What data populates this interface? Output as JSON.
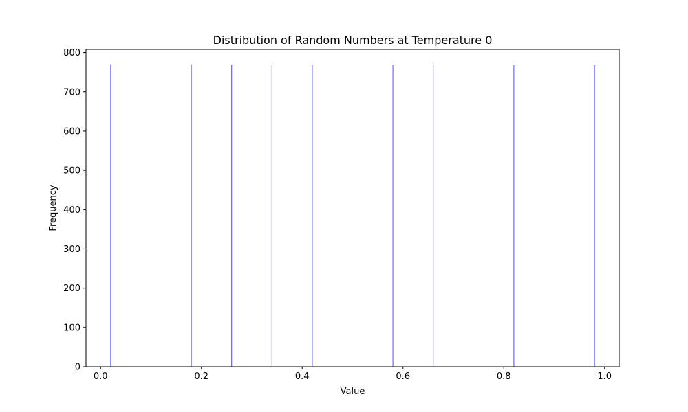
{
  "chart_data": {
    "type": "bar",
    "title": "Distribution of Random Numbers at Temperature 0",
    "xlabel": "Value",
    "ylabel": "Frequency",
    "xlim": [
      -0.029,
      1.029
    ],
    "ylim": [
      0,
      808
    ],
    "x_ticks": [
      0.0,
      0.2,
      0.4,
      0.6,
      0.8,
      1.0
    ],
    "x_tick_labels": [
      "0.0",
      "0.2",
      "0.4",
      "0.6",
      "0.8",
      "1.0"
    ],
    "y_ticks": [
      0,
      100,
      200,
      300,
      400,
      500,
      600,
      700,
      800
    ],
    "y_tick_labels": [
      "0",
      "100",
      "200",
      "300",
      "400",
      "500",
      "600",
      "700",
      "800"
    ],
    "bar_color": "#0000ff",
    "bar_opacity": 0.7,
    "grid": false,
    "bars": [
      {
        "x": 0.02,
        "value": 770
      },
      {
        "x": 0.18,
        "value": 770
      },
      {
        "x": 0.26,
        "value": 769
      },
      {
        "x": 0.34,
        "value": 768
      },
      {
        "x": 0.42,
        "value": 768
      },
      {
        "x": 0.58,
        "value": 768
      },
      {
        "x": 0.66,
        "value": 768
      },
      {
        "x": 0.82,
        "value": 768
      },
      {
        "x": 0.98,
        "value": 768
      }
    ]
  }
}
